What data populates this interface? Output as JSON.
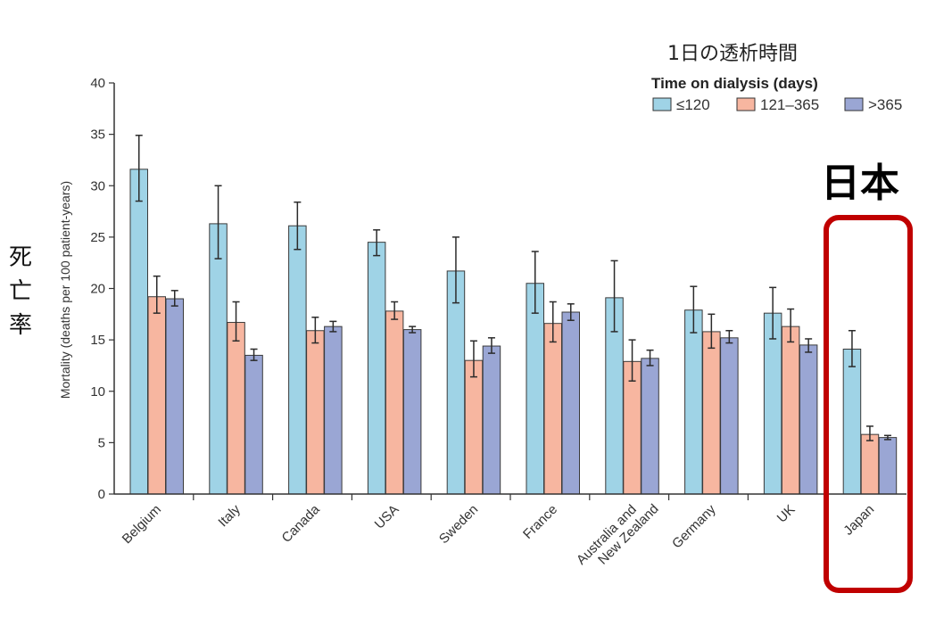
{
  "chart_data": {
    "type": "bar",
    "categories": [
      "Belgium",
      "Italy",
      "Canada",
      "USA",
      "Sweden",
      "France",
      "Australia and New Zealand",
      "Germany",
      "UK",
      "Japan"
    ],
    "category_lines": [
      [
        "Belgium"
      ],
      [
        "Italy"
      ],
      [
        "Canada"
      ],
      [
        "USA"
      ],
      [
        "Sweden"
      ],
      [
        "France"
      ],
      [
        "Australia and",
        "New Zealand"
      ],
      [
        "Germany"
      ],
      [
        "UK"
      ],
      [
        "Japan"
      ]
    ],
    "series": [
      {
        "name": "≤120",
        "color": "#9fd3e6",
        "values": [
          31.6,
          26.3,
          26.1,
          24.5,
          21.7,
          20.5,
          19.1,
          17.9,
          17.6,
          14.1
        ],
        "err_low": [
          28.5,
          22.9,
          23.8,
          23.2,
          18.6,
          17.6,
          15.8,
          15.7,
          15.1,
          12.4
        ],
        "err_high": [
          34.9,
          30.0,
          28.4,
          25.7,
          25.0,
          23.6,
          22.7,
          20.2,
          20.1,
          15.9
        ]
      },
      {
        "name": "121–365",
        "color": "#f7b6a0",
        "values": [
          19.2,
          16.7,
          15.9,
          17.8,
          13.0,
          16.6,
          12.9,
          15.8,
          16.3,
          5.8
        ],
        "err_low": [
          17.6,
          14.9,
          14.7,
          17.0,
          11.4,
          14.8,
          11.0,
          14.2,
          14.8,
          5.2
        ],
        "err_high": [
          21.2,
          18.7,
          17.2,
          18.7,
          14.9,
          18.7,
          15.0,
          17.5,
          18.0,
          6.6
        ]
      },
      {
        "name": ">365",
        "color": "#9aa6d4",
        "values": [
          19.0,
          13.5,
          16.3,
          16.0,
          14.4,
          17.7,
          13.2,
          15.2,
          14.5,
          5.5
        ],
        "err_low": [
          18.3,
          13.0,
          15.8,
          15.7,
          13.7,
          16.9,
          12.5,
          14.7,
          13.8,
          5.3
        ],
        "err_high": [
          19.8,
          14.1,
          16.8,
          16.3,
          15.2,
          18.5,
          14.0,
          15.9,
          15.1,
          5.7
        ]
      }
    ],
    "ylabel": "Mortality (deaths per 100 patient-years)",
    "ylim": [
      0,
      40
    ],
    "yticks": [
      0,
      5,
      10,
      15,
      20,
      25,
      30,
      35,
      40
    ],
    "legend_title": "Time on dialysis (days)",
    "legend_position": "top-right",
    "grid": false,
    "highlight_category": "Japan"
  },
  "annotations": {
    "legend_caption_jp": "1日の透析時間",
    "japan_label_jp": "日本",
    "ylabel_jp": "死亡率",
    "highlight_color": "#c00000"
  }
}
